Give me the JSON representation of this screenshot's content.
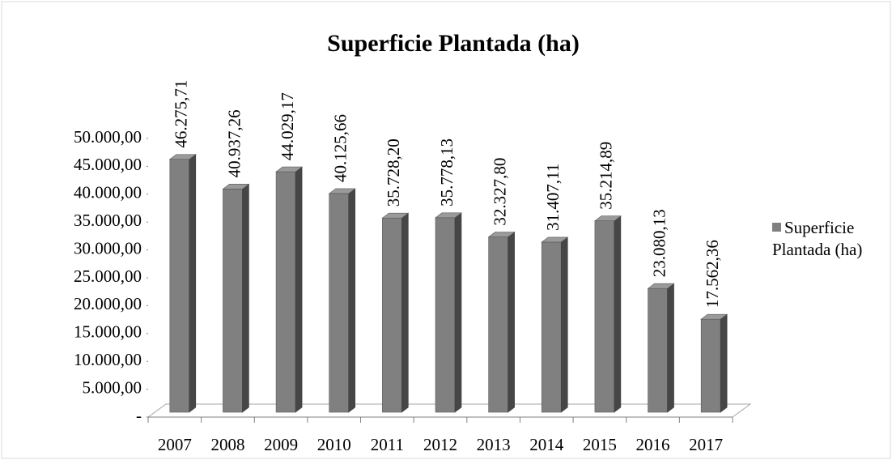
{
  "chart_data": {
    "type": "bar3d",
    "title": "Superficie Plantada (ha)",
    "categories": [
      "2007",
      "2008",
      "2009",
      "2010",
      "2011",
      "2012",
      "2013",
      "2014",
      "2015",
      "2016",
      "2017"
    ],
    "series": [
      {
        "name": "Superficie Plantada (ha)",
        "color": "#808080",
        "values": [
          46275.71,
          40937.26,
          44029.17,
          40125.66,
          35728.2,
          35778.13,
          32327.8,
          31407.11,
          35214.89,
          23080.13,
          17562.36
        ],
        "value_labels": [
          "46.275,71",
          "40.937,26",
          "44.029,17",
          "40.125,66",
          "35.728,20",
          "35.778,13",
          "32.327,80",
          "31.407,11",
          "35.214,89",
          "23.080,13",
          "17.562,36"
        ]
      }
    ],
    "ylim": [
      0,
      50000
    ],
    "yticks": [
      {
        "value": 0,
        "label": "-"
      },
      {
        "value": 5000,
        "label": "5.000,00"
      },
      {
        "value": 10000,
        "label": "10.000,00"
      },
      {
        "value": 15000,
        "label": "15.000,00"
      },
      {
        "value": 20000,
        "label": "20.000,00"
      },
      {
        "value": 25000,
        "label": "25.000,00"
      },
      {
        "value": 30000,
        "label": "30.000,00"
      },
      {
        "value": 35000,
        "label": "35.000,00"
      },
      {
        "value": 40000,
        "label": "40.000,00"
      },
      {
        "value": 45000,
        "label": "45.000,00"
      },
      {
        "value": 50000,
        "label": "50.000,00"
      }
    ],
    "legend": "right"
  }
}
